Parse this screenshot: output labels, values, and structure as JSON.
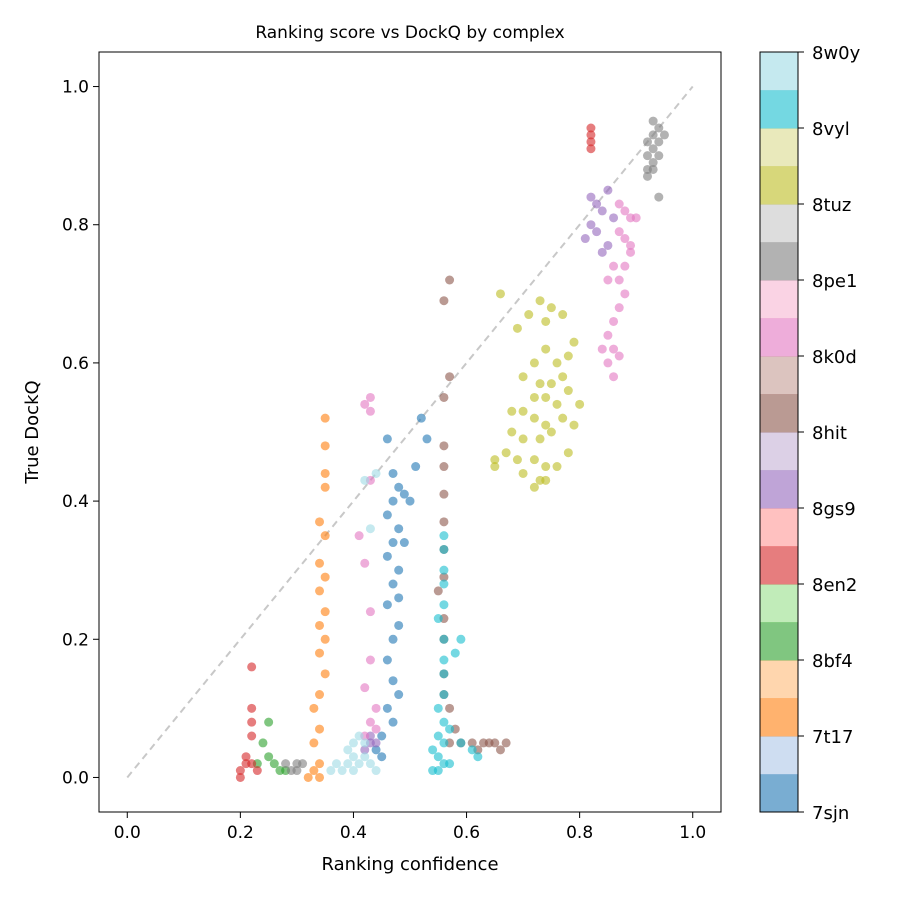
{
  "chart_data": {
    "type": "scatter",
    "title": "Ranking score vs DockQ by complex",
    "xlabel": "Ranking confidence",
    "ylabel": "True DockQ",
    "xlim": [
      -0.05,
      1.05
    ],
    "ylim": [
      -0.05,
      1.05
    ],
    "xticks": [
      "0.0",
      "0.2",
      "0.4",
      "0.6",
      "0.8",
      "1.0"
    ],
    "yticks": [
      "0.0",
      "0.2",
      "0.4",
      "0.6",
      "0.8",
      "1.0"
    ],
    "reference_line": "y = x (dashed gray)",
    "grid": false,
    "colorbar": {
      "labels": [
        "7sjn",
        "7t17",
        "8bf4",
        "8en2",
        "8gs9",
        "8hit",
        "8k0d",
        "8pe1",
        "8tuz",
        "8vyl",
        "8w0y"
      ],
      "colors": [
        "#1f77b4",
        "#aec7e8",
        "#ff7f0e",
        "#ffbb78",
        "#2ca02c",
        "#98df8a",
        "#d62728",
        "#ff9896",
        "#9467bd",
        "#c5b0d5",
        "#8c564b",
        "#c49c94",
        "#e377c2",
        "#f7b6d2",
        "#7f7f7f",
        "#c7c7c7",
        "#bcbd22",
        "#dbdb8d",
        "#17becf",
        "#9edae5"
      ]
    },
    "series": [
      {
        "name": "7sjn",
        "color": "#1f77b4",
        "points": [
          [
            0.46,
            0.49
          ],
          [
            0.47,
            0.44
          ],
          [
            0.48,
            0.42
          ],
          [
            0.47,
            0.4
          ],
          [
            0.46,
            0.38
          ],
          [
            0.48,
            0.36
          ],
          [
            0.47,
            0.34
          ],
          [
            0.49,
            0.34
          ],
          [
            0.46,
            0.32
          ],
          [
            0.48,
            0.3
          ],
          [
            0.47,
            0.28
          ],
          [
            0.46,
            0.25
          ],
          [
            0.48,
            0.22
          ],
          [
            0.47,
            0.2
          ],
          [
            0.46,
            0.17
          ],
          [
            0.47,
            0.14
          ],
          [
            0.48,
            0.12
          ],
          [
            0.46,
            0.1
          ],
          [
            0.47,
            0.08
          ],
          [
            0.45,
            0.06
          ],
          [
            0.44,
            0.04
          ],
          [
            0.52,
            0.52
          ],
          [
            0.53,
            0.49
          ],
          [
            0.51,
            0.45
          ],
          [
            0.49,
            0.41
          ],
          [
            0.5,
            0.4
          ],
          [
            0.45,
            0.03
          ],
          [
            0.48,
            0.26
          ]
        ]
      },
      {
        "name": "7t17",
        "color": "#ff7f0e",
        "points": [
          [
            0.35,
            0.52
          ],
          [
            0.35,
            0.48
          ],
          [
            0.35,
            0.44
          ],
          [
            0.35,
            0.42
          ],
          [
            0.34,
            0.37
          ],
          [
            0.35,
            0.35
          ],
          [
            0.34,
            0.31
          ],
          [
            0.35,
            0.29
          ],
          [
            0.34,
            0.27
          ],
          [
            0.35,
            0.24
          ],
          [
            0.34,
            0.22
          ],
          [
            0.35,
            0.2
          ],
          [
            0.34,
            0.18
          ],
          [
            0.35,
            0.15
          ],
          [
            0.34,
            0.12
          ],
          [
            0.33,
            0.1
          ],
          [
            0.34,
            0.07
          ],
          [
            0.33,
            0.05
          ],
          [
            0.34,
            0.02
          ],
          [
            0.33,
            0.01
          ],
          [
            0.34,
            0.0
          ],
          [
            0.32,
            0.0
          ]
        ]
      },
      {
        "name": "8bf4",
        "color": "#2ca02c",
        "points": [
          [
            0.25,
            0.08
          ],
          [
            0.24,
            0.05
          ],
          [
            0.25,
            0.03
          ],
          [
            0.26,
            0.02
          ],
          [
            0.27,
            0.01
          ],
          [
            0.28,
            0.01
          ],
          [
            0.23,
            0.02
          ]
        ]
      },
      {
        "name": "8en2",
        "color": "#d62728",
        "points": [
          [
            0.22,
            0.16
          ],
          [
            0.22,
            0.1
          ],
          [
            0.22,
            0.08
          ],
          [
            0.22,
            0.06
          ],
          [
            0.21,
            0.03
          ],
          [
            0.2,
            0.01
          ],
          [
            0.2,
            0.0
          ],
          [
            0.22,
            0.02
          ],
          [
            0.23,
            0.01
          ],
          [
            0.21,
            0.02
          ],
          [
            0.82,
            0.94
          ],
          [
            0.82,
            0.93
          ],
          [
            0.82,
            0.92
          ],
          [
            0.82,
            0.91
          ]
        ]
      },
      {
        "name": "8gs9",
        "color": "#9467bd",
        "points": [
          [
            0.82,
            0.84
          ],
          [
            0.83,
            0.83
          ],
          [
            0.84,
            0.82
          ],
          [
            0.82,
            0.8
          ],
          [
            0.83,
            0.79
          ],
          [
            0.85,
            0.85
          ],
          [
            0.86,
            0.81
          ],
          [
            0.81,
            0.78
          ],
          [
            0.84,
            0.76
          ],
          [
            0.85,
            0.77
          ],
          [
            0.43,
            0.06
          ],
          [
            0.44,
            0.05
          ],
          [
            0.42,
            0.04
          ],
          [
            0.43,
            0.05
          ]
        ]
      },
      {
        "name": "8hit",
        "color": "#8c564b",
        "points": [
          [
            0.57,
            0.72
          ],
          [
            0.56,
            0.69
          ],
          [
            0.57,
            0.58
          ],
          [
            0.56,
            0.55
          ],
          [
            0.56,
            0.48
          ],
          [
            0.56,
            0.45
          ],
          [
            0.56,
            0.41
          ],
          [
            0.56,
            0.37
          ],
          [
            0.56,
            0.33
          ],
          [
            0.56,
            0.29
          ],
          [
            0.55,
            0.27
          ],
          [
            0.56,
            0.23
          ],
          [
            0.56,
            0.2
          ],
          [
            0.56,
            0.15
          ],
          [
            0.56,
            0.12
          ],
          [
            0.57,
            0.1
          ],
          [
            0.58,
            0.07
          ],
          [
            0.57,
            0.05
          ],
          [
            0.59,
            0.05
          ],
          [
            0.61,
            0.05
          ],
          [
            0.62,
            0.04
          ],
          [
            0.63,
            0.05
          ],
          [
            0.64,
            0.05
          ],
          [
            0.65,
            0.05
          ],
          [
            0.66,
            0.04
          ],
          [
            0.67,
            0.05
          ]
        ]
      },
      {
        "name": "8k0d",
        "color": "#e377c2",
        "points": [
          [
            0.42,
            0.54
          ],
          [
            0.43,
            0.55
          ],
          [
            0.43,
            0.53
          ],
          [
            0.43,
            0.43
          ],
          [
            0.41,
            0.35
          ],
          [
            0.42,
            0.31
          ],
          [
            0.43,
            0.24
          ],
          [
            0.43,
            0.17
          ],
          [
            0.42,
            0.13
          ],
          [
            0.44,
            0.1
          ],
          [
            0.43,
            0.08
          ],
          [
            0.44,
            0.07
          ],
          [
            0.42,
            0.06
          ],
          [
            0.87,
            0.83
          ],
          [
            0.88,
            0.82
          ],
          [
            0.89,
            0.81
          ],
          [
            0.87,
            0.79
          ],
          [
            0.88,
            0.78
          ],
          [
            0.89,
            0.76
          ],
          [
            0.88,
            0.74
          ],
          [
            0.87,
            0.72
          ],
          [
            0.88,
            0.7
          ],
          [
            0.87,
            0.68
          ],
          [
            0.86,
            0.74
          ],
          [
            0.85,
            0.72
          ],
          [
            0.86,
            0.66
          ],
          [
            0.85,
            0.64
          ],
          [
            0.86,
            0.62
          ],
          [
            0.87,
            0.61
          ],
          [
            0.85,
            0.6
          ],
          [
            0.86,
            0.58
          ],
          [
            0.84,
            0.62
          ],
          [
            0.9,
            0.81
          ],
          [
            0.89,
            0.77
          ]
        ]
      },
      {
        "name": "8pe1",
        "color": "#7f7f7f",
        "points": [
          [
            0.93,
            0.95
          ],
          [
            0.94,
            0.94
          ],
          [
            0.93,
            0.93
          ],
          [
            0.92,
            0.92
          ],
          [
            0.94,
            0.92
          ],
          [
            0.93,
            0.91
          ],
          [
            0.92,
            0.9
          ],
          [
            0.94,
            0.9
          ],
          [
            0.93,
            0.89
          ],
          [
            0.92,
            0.88
          ],
          [
            0.93,
            0.88
          ],
          [
            0.92,
            0.87
          ],
          [
            0.94,
            0.84
          ],
          [
            0.95,
            0.93
          ],
          [
            0.3,
            0.01
          ],
          [
            0.31,
            0.02
          ],
          [
            0.29,
            0.01
          ],
          [
            0.28,
            0.02
          ],
          [
            0.3,
            0.02
          ]
        ]
      },
      {
        "name": "8tuz",
        "color": "#bcbd22",
        "points": [
          [
            0.66,
            0.7
          ],
          [
            0.69,
            0.65
          ],
          [
            0.71,
            0.67
          ],
          [
            0.73,
            0.69
          ],
          [
            0.74,
            0.66
          ],
          [
            0.75,
            0.68
          ],
          [
            0.77,
            0.67
          ],
          [
            0.79,
            0.63
          ],
          [
            0.78,
            0.61
          ],
          [
            0.76,
            0.6
          ],
          [
            0.74,
            0.62
          ],
          [
            0.72,
            0.6
          ],
          [
            0.7,
            0.58
          ],
          [
            0.73,
            0.57
          ],
          [
            0.75,
            0.57
          ],
          [
            0.77,
            0.58
          ],
          [
            0.72,
            0.55
          ],
          [
            0.74,
            0.55
          ],
          [
            0.76,
            0.54
          ],
          [
            0.7,
            0.53
          ],
          [
            0.72,
            0.52
          ],
          [
            0.74,
            0.51
          ],
          [
            0.68,
            0.5
          ],
          [
            0.7,
            0.49
          ],
          [
            0.73,
            0.49
          ],
          [
            0.75,
            0.5
          ],
          [
            0.77,
            0.52
          ],
          [
            0.79,
            0.51
          ],
          [
            0.67,
            0.47
          ],
          [
            0.69,
            0.46
          ],
          [
            0.72,
            0.46
          ],
          [
            0.74,
            0.45
          ],
          [
            0.76,
            0.45
          ],
          [
            0.78,
            0.47
          ],
          [
            0.73,
            0.43
          ],
          [
            0.74,
            0.43
          ],
          [
            0.7,
            0.44
          ],
          [
            0.72,
            0.42
          ],
          [
            0.65,
            0.46
          ],
          [
            0.65,
            0.45
          ],
          [
            0.68,
            0.53
          ],
          [
            0.78,
            0.56
          ],
          [
            0.8,
            0.54
          ]
        ]
      },
      {
        "name": "8vyl",
        "color": "#17becf",
        "points": [
          [
            0.56,
            0.35
          ],
          [
            0.56,
            0.33
          ],
          [
            0.56,
            0.3
          ],
          [
            0.56,
            0.28
          ],
          [
            0.56,
            0.25
          ],
          [
            0.55,
            0.23
          ],
          [
            0.56,
            0.2
          ],
          [
            0.56,
            0.17
          ],
          [
            0.58,
            0.18
          ],
          [
            0.59,
            0.2
          ],
          [
            0.56,
            0.15
          ],
          [
            0.56,
            0.12
          ],
          [
            0.55,
            0.1
          ],
          [
            0.56,
            0.08
          ],
          [
            0.55,
            0.06
          ],
          [
            0.56,
            0.05
          ],
          [
            0.54,
            0.04
          ],
          [
            0.55,
            0.03
          ],
          [
            0.56,
            0.02
          ],
          [
            0.55,
            0.01
          ],
          [
            0.54,
            0.01
          ],
          [
            0.57,
            0.02
          ],
          [
            0.59,
            0.05
          ],
          [
            0.61,
            0.04
          ],
          [
            0.62,
            0.03
          ],
          [
            0.57,
            0.07
          ]
        ]
      },
      {
        "name": "8w0y",
        "color": "#9edae5",
        "points": [
          [
            0.42,
            0.43
          ],
          [
            0.43,
            0.36
          ],
          [
            0.44,
            0.44
          ],
          [
            0.41,
            0.06
          ],
          [
            0.42,
            0.05
          ],
          [
            0.4,
            0.03
          ],
          [
            0.39,
            0.02
          ],
          [
            0.38,
            0.01
          ],
          [
            0.37,
            0.02
          ],
          [
            0.36,
            0.01
          ],
          [
            0.4,
            0.01
          ],
          [
            0.41,
            0.02
          ],
          [
            0.42,
            0.03
          ],
          [
            0.43,
            0.02
          ],
          [
            0.44,
            0.01
          ],
          [
            0.39,
            0.04
          ],
          [
            0.4,
            0.05
          ]
        ]
      }
    ]
  }
}
